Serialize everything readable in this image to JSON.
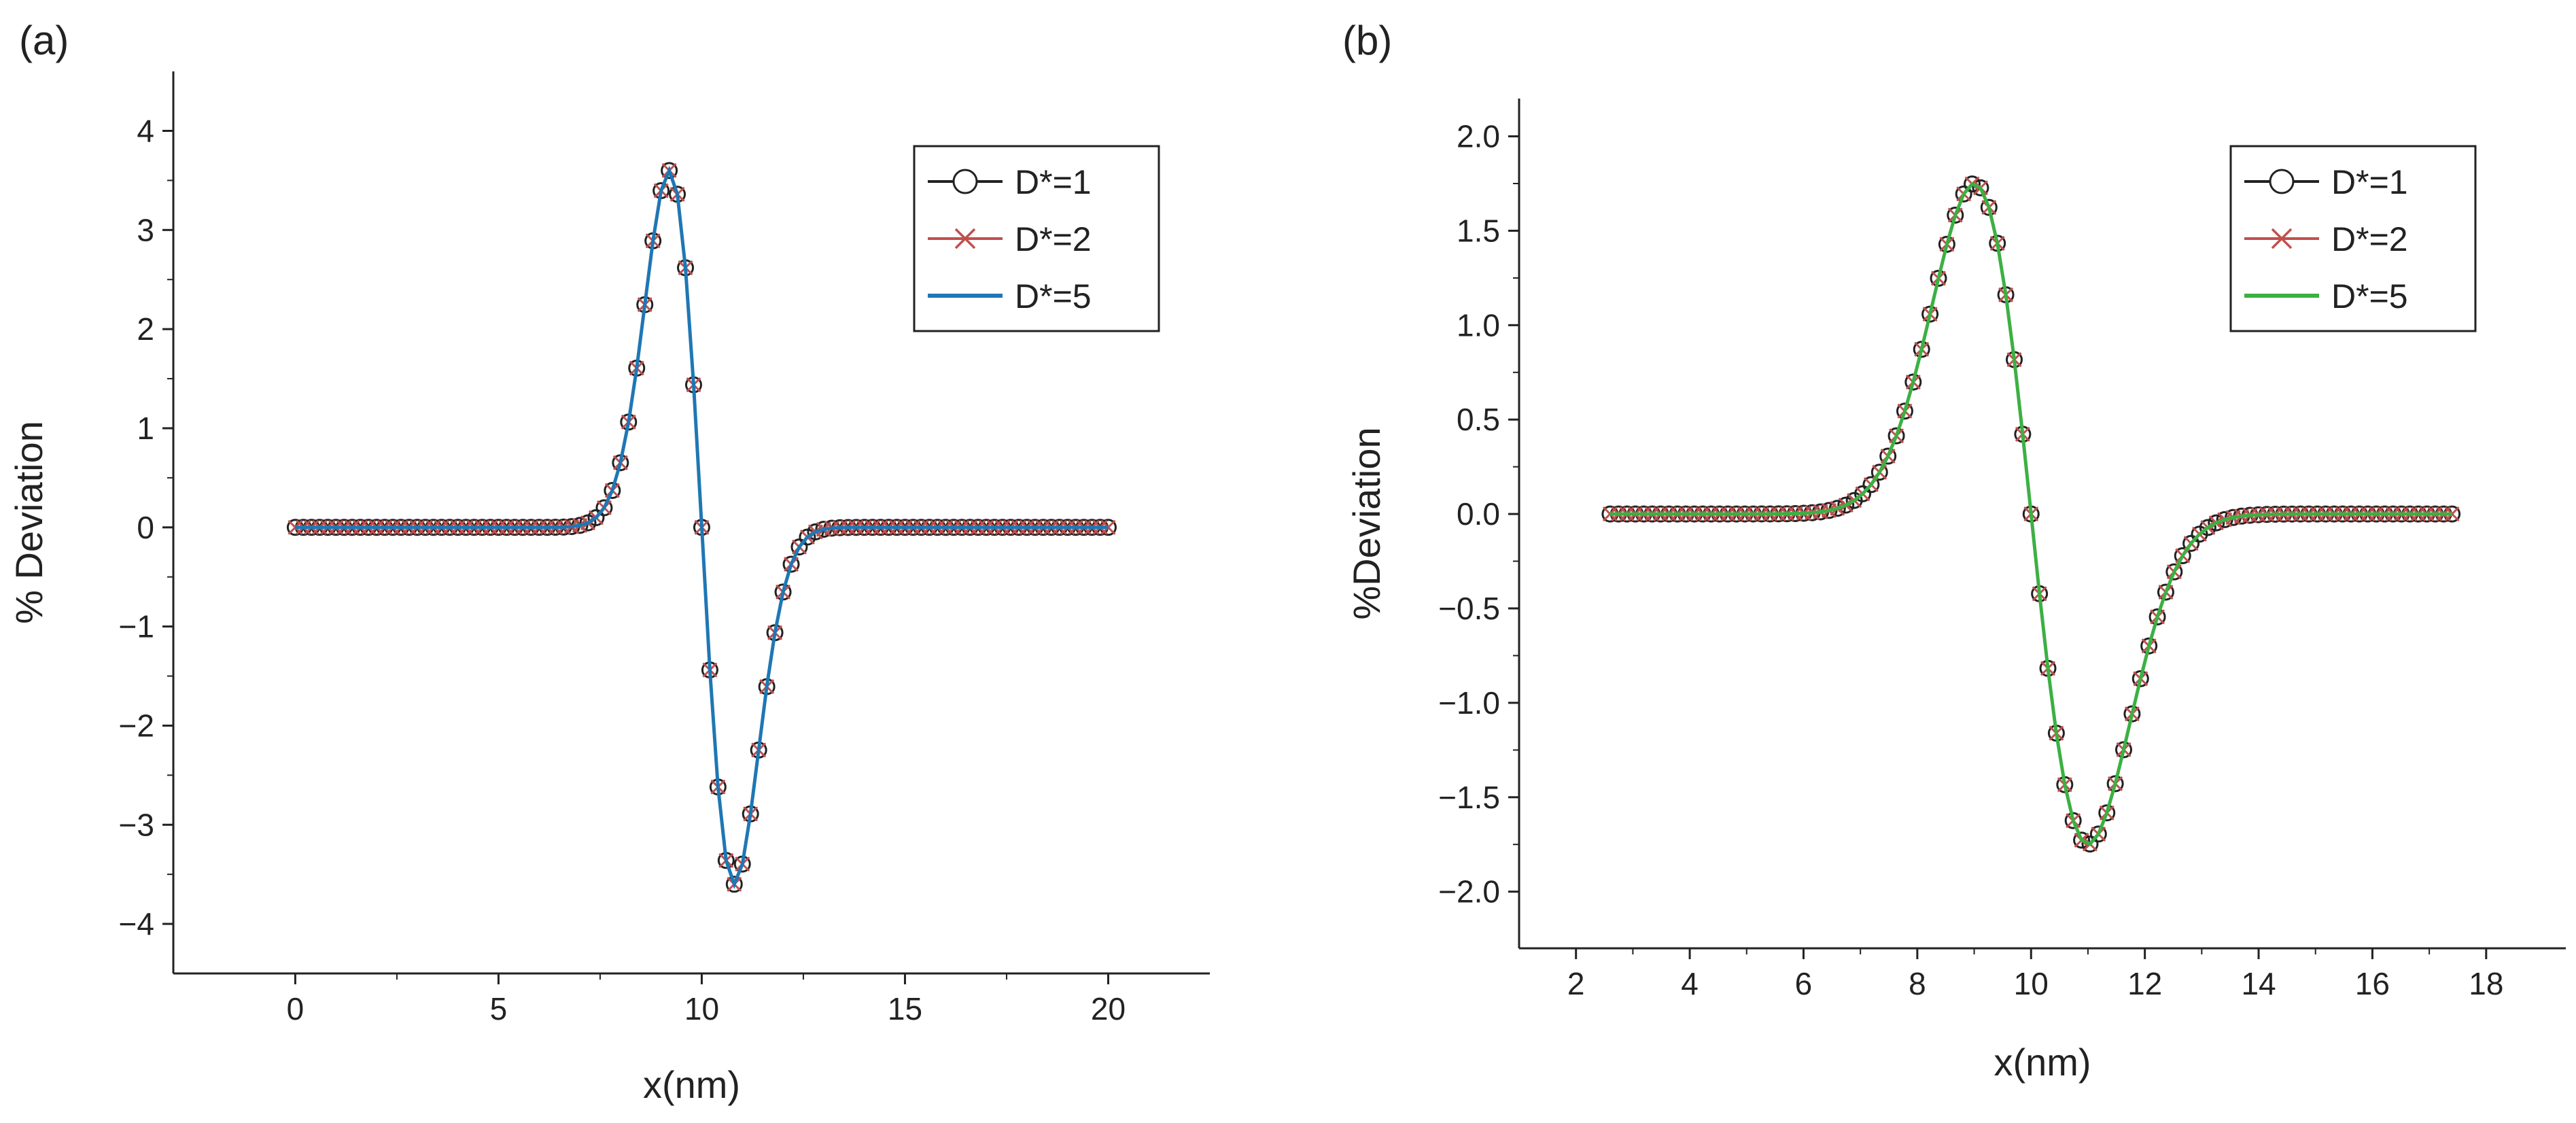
{
  "chart_data": [
    {
      "panel_label": "(a)",
      "type": "line",
      "xlabel": "x(nm)",
      "ylabel": "% Deviation",
      "xlim": [
        -3,
        22.5
      ],
      "ylim": [
        -4.5,
        4.6
      ],
      "xticks": [
        0,
        5,
        10,
        15,
        20
      ],
      "xtick_labels": [
        "0",
        "5",
        "10",
        "15",
        "20"
      ],
      "yticks": [
        -4,
        -3,
        -2,
        -1,
        0,
        1,
        2,
        3,
        4
      ],
      "ytick_labels": [
        "−4",
        "−3",
        "−2",
        "−1",
        "0",
        "1",
        "2",
        "3",
        "4"
      ],
      "legend_position": "top-right",
      "curve": {
        "x_start": 0,
        "x_end": 20,
        "points": 101,
        "peak_x": 9.2,
        "peak": 3.6,
        "trough_x": 10.8,
        "trough": -3.6
      },
      "series": [
        {
          "name": "D*=1",
          "color": "#222222",
          "marker": "circle"
        },
        {
          "name": "D*=2",
          "color": "#c0504d",
          "marker": "x"
        },
        {
          "name": "D*=5",
          "color": "#1f77b4",
          "marker": "none"
        }
      ]
    },
    {
      "panel_label": "(b)",
      "type": "line",
      "xlabel": "x(nm)",
      "ylabel": "%Deviation",
      "xlim": [
        1,
        19.4
      ],
      "ylim": [
        -2.3,
        2.2
      ],
      "xticks": [
        2,
        4,
        6,
        8,
        10,
        12,
        14,
        16,
        18
      ],
      "xtick_labels": [
        "2",
        "4",
        "6",
        "8",
        "10",
        "12",
        "14",
        "16",
        "18"
      ],
      "yticks": [
        -2.0,
        -1.5,
        -1.0,
        -0.5,
        0.0,
        0.5,
        1.0,
        1.5,
        2.0
      ],
      "ytick_labels": [
        "−2.0",
        "−1.5",
        "−1.0",
        "−0.5",
        "0.0",
        "0.5",
        "1.0",
        "1.5",
        "2.0"
      ],
      "legend_position": "top-right",
      "curve": {
        "x_start": 2.6,
        "x_end": 17.4,
        "points": 101,
        "peak_x": 9.0,
        "peak": 1.75,
        "trough_x": 11.0,
        "trough": -1.75
      },
      "series": [
        {
          "name": "D*=1",
          "color": "#222222",
          "marker": "circle"
        },
        {
          "name": "D*=2",
          "color": "#c0504d",
          "marker": "x"
        },
        {
          "name": "D*=5",
          "color": "#3cb043",
          "marker": "none"
        }
      ]
    }
  ]
}
